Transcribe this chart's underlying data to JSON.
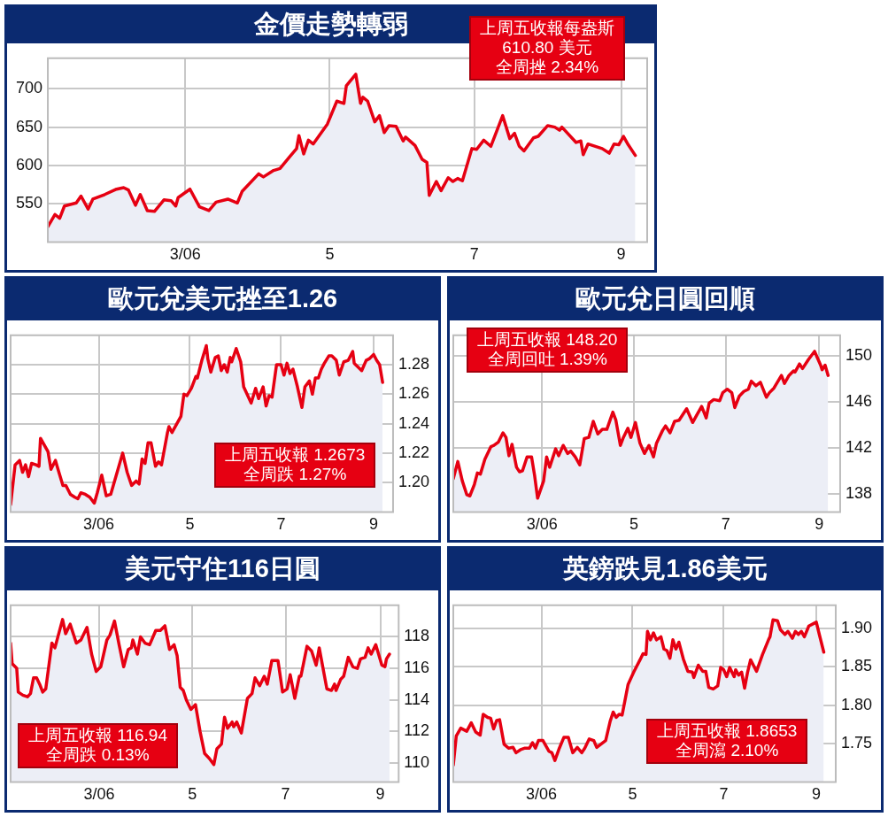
{
  "chart_data": [
    {
      "type": "area",
      "title": "金價走勢轉弱",
      "color": "#e60012",
      "grid": true,
      "xlim": [
        "2006-01-02",
        "2006-09-12"
      ],
      "xticks": [
        {
          "value": "2006-03-01",
          "label": "3/06"
        },
        {
          "value": "2006-05-01",
          "label": "5"
        },
        {
          "value": "2006-07-01",
          "label": "7"
        },
        {
          "value": "2006-09-01",
          "label": "9"
        }
      ],
      "ylim": [
        500,
        740
      ],
      "yticks": [
        550,
        600,
        650,
        700
      ],
      "x": [
        "2006-01-02",
        "2006-01-05",
        "2006-01-07",
        "2006-01-09",
        "2006-01-14",
        "2006-01-16",
        "2006-01-19",
        "2006-01-21",
        "2006-01-26",
        "2006-01-31",
        "2006-02-03",
        "2006-02-05",
        "2006-02-08",
        "2006-02-10",
        "2006-02-13",
        "2006-02-16",
        "2006-02-20",
        "2006-02-23",
        "2006-02-25",
        "2006-02-26",
        "2006-03-03",
        "2006-03-07",
        "2006-03-11",
        "2006-03-14",
        "2006-03-19",
        "2006-03-23",
        "2006-03-25",
        "2006-04-01",
        "2006-04-03",
        "2006-04-07",
        "2006-04-10",
        "2006-04-14",
        "2006-04-17",
        "2006-04-18",
        "2006-04-20",
        "2006-04-22",
        "2006-04-24",
        "2006-04-30",
        "2006-05-04",
        "2006-05-07",
        "2006-05-08",
        "2006-05-12",
        "2006-05-14",
        "2006-05-15",
        "2006-05-17",
        "2006-05-20",
        "2006-05-22",
        "2006-05-24",
        "2006-05-26",
        "2006-05-29",
        "2006-06-01",
        "2006-06-02",
        "2006-06-06",
        "2006-06-09",
        "2006-06-11",
        "2006-06-12",
        "2006-06-15",
        "2006-06-17",
        "2006-06-20",
        "2006-06-22",
        "2006-06-24",
        "2006-06-26",
        "2006-06-30",
        "2006-07-02",
        "2006-07-05",
        "2006-07-08",
        "2006-07-13",
        "2006-07-16",
        "2006-07-18",
        "2006-07-20",
        "2006-07-22",
        "2006-07-26",
        "2006-07-28",
        "2006-08-01",
        "2006-08-04",
        "2006-08-06",
        "2006-08-07",
        "2006-08-13",
        "2006-08-15",
        "2006-08-16",
        "2006-08-18",
        "2006-08-24",
        "2006-08-27",
        "2006-08-29",
        "2006-08-31",
        "2006-09-02",
        "2006-09-04",
        "2006-09-07"
      ],
      "values": [
        520,
        536,
        531,
        547,
        551,
        560,
        543,
        556,
        562,
        569,
        571,
        568,
        548,
        562,
        541,
        540,
        555,
        554,
        547,
        558,
        569,
        546,
        541,
        552,
        556,
        551,
        566,
        589,
        585,
        593,
        596,
        611,
        622,
        639,
        615,
        633,
        628,
        654,
        684,
        681,
        704,
        719,
        681,
        689,
        684,
        657,
        665,
        643,
        652,
        651,
        632,
        637,
        626,
        608,
        604,
        561,
        579,
        567,
        584,
        579,
        583,
        580,
        622,
        621,
        633,
        625,
        665,
        635,
        642,
        625,
        619,
        636,
        638,
        652,
        650,
        646,
        650,
        630,
        632,
        614,
        628,
        622,
        616,
        628,
        627,
        638,
        627,
        613
      ],
      "annotations": [
        "上周五收報每盎斯",
        "610.80 美元",
        "全周挫 2.34%"
      ]
    },
    {
      "type": "area",
      "title": "歐元兌美元挫至1.26",
      "color": "#e60012",
      "grid": true,
      "xlim": [
        "2006-01-01",
        "2006-09-14"
      ],
      "xticks": [
        {
          "value": "2006-03-01",
          "label": "3/06"
        },
        {
          "value": "2006-05-01",
          "label": "5"
        },
        {
          "value": "2006-07-01",
          "label": "7"
        },
        {
          "value": "2006-09-01",
          "label": "9"
        }
      ],
      "ylim": [
        1.18,
        1.3
      ],
      "yticks": [
        {
          "value": 1.2,
          "label": "1.20"
        },
        1.22,
        1.24,
        1.26,
        1.28
      ],
      "x": [
        "2006-01-01",
        "2006-01-04",
        "2006-01-07",
        "2006-01-09",
        "2006-01-11",
        "2006-01-13",
        "2006-01-15",
        "2006-01-18",
        "2006-01-20",
        "2006-01-21",
        "2006-01-26",
        "2006-01-28",
        "2006-01-31",
        "2006-02-02",
        "2006-02-05",
        "2006-02-07",
        "2006-02-10",
        "2006-02-13",
        "2006-02-15",
        "2006-02-17",
        "2006-02-20",
        "2006-02-23",
        "2006-02-26",
        "2006-02-28",
        "2006-03-03",
        "2006-03-06",
        "2006-03-09",
        "2006-03-13",
        "2006-03-17",
        "2006-03-20",
        "2006-03-23",
        "2006-03-26",
        "2006-03-28",
        "2006-03-30",
        "2006-04-01",
        "2006-04-03",
        "2006-04-05",
        "2006-04-08",
        "2006-04-10",
        "2006-04-12",
        "2006-04-16",
        "2006-04-17",
        "2006-04-19",
        "2006-04-25",
        "2006-04-27",
        "2006-04-29",
        "2006-05-02",
        "2006-05-05",
        "2006-05-06",
        "2006-05-09",
        "2006-05-12",
        "2006-05-13",
        "2006-05-15",
        "2006-05-18",
        "2006-05-20",
        "2006-05-22",
        "2006-05-24",
        "2006-05-26",
        "2006-05-28",
        "2006-05-29",
        "2006-06-01",
        "2006-06-04",
        "2006-06-06",
        "2006-06-11",
        "2006-06-14",
        "2006-06-16",
        "2006-06-19",
        "2006-06-21",
        "2006-06-23",
        "2006-06-25",
        "2006-06-28",
        "2006-07-01",
        "2006-07-03",
        "2006-07-05",
        "2006-07-07",
        "2006-07-09",
        "2006-07-12",
        "2006-07-15",
        "2006-07-17",
        "2006-07-20",
        "2006-07-22",
        "2006-07-24",
        "2006-07-26",
        "2006-07-28",
        "2006-07-30",
        "2006-08-02",
        "2006-08-04",
        "2006-08-07",
        "2006-08-09",
        "2006-08-12",
        "2006-08-15",
        "2006-08-18",
        "2006-08-19",
        "2006-08-21",
        "2006-08-24",
        "2006-08-27",
        "2006-08-29",
        "2006-09-01",
        "2006-09-03",
        "2006-09-05",
        "2006-09-07"
      ],
      "values": [
        1.185,
        1.212,
        1.215,
        1.207,
        1.212,
        1.204,
        1.213,
        1.212,
        1.211,
        1.23,
        1.221,
        1.209,
        1.215,
        1.208,
        1.198,
        1.198,
        1.192,
        1.19,
        1.189,
        1.193,
        1.192,
        1.19,
        1.186,
        1.193,
        1.205,
        1.191,
        1.192,
        1.206,
        1.22,
        1.207,
        1.198,
        1.201,
        1.199,
        1.216,
        1.213,
        1.227,
        1.227,
        1.211,
        1.214,
        1.212,
        1.234,
        1.238,
        1.234,
        1.245,
        1.26,
        1.259,
        1.264,
        1.272,
        1.271,
        1.283,
        1.293,
        1.284,
        1.275,
        1.285,
        1.286,
        1.276,
        1.28,
        1.275,
        1.285,
        1.282,
        1.291,
        1.282,
        1.265,
        1.254,
        1.264,
        1.257,
        1.265,
        1.252,
        1.259,
        1.258,
        1.28,
        1.28,
        1.273,
        1.281,
        1.274,
        1.277,
        1.265,
        1.251,
        1.265,
        1.269,
        1.26,
        1.271,
        1.271,
        1.277,
        1.281,
        1.286,
        1.286,
        1.283,
        1.273,
        1.282,
        1.283,
        1.289,
        1.281,
        1.279,
        1.276,
        1.283,
        1.284,
        1.287,
        1.283,
        1.28,
        1.268
      ],
      "annotations": [
        "上周五收報 1.2673",
        "全周跌 1.27%"
      ]
    },
    {
      "type": "area",
      "title": "歐元兌日圓回順",
      "color": "#e60012",
      "grid": true,
      "xlim": [
        "2006-01-01",
        "2006-09-15"
      ],
      "xticks": [
        {
          "value": "2006-03-01",
          "label": "3/06"
        },
        {
          "value": "2006-05-01",
          "label": "5"
        },
        {
          "value": "2006-07-01",
          "label": "7"
        },
        {
          "value": "2006-09-01",
          "label": "9"
        }
      ],
      "ylim": [
        136.4,
        151.8
      ],
      "yticks": [
        138,
        142,
        146,
        150
      ],
      "x": [
        "2006-01-01",
        "2006-01-04",
        "2006-01-07",
        "2006-01-10",
        "2006-01-12",
        "2006-01-15",
        "2006-01-17",
        "2006-01-19",
        "2006-01-22",
        "2006-01-26",
        "2006-01-28",
        "2006-01-31",
        "2006-02-03",
        "2006-02-05",
        "2006-02-07",
        "2006-02-09",
        "2006-02-12",
        "2006-02-14",
        "2006-02-16",
        "2006-02-19",
        "2006-02-22",
        "2006-02-24",
        "2006-02-26",
        "2006-03-02",
        "2006-03-04",
        "2006-03-06",
        "2006-03-10",
        "2006-03-12",
        "2006-03-15",
        "2006-03-18",
        "2006-03-20",
        "2006-03-23",
        "2006-03-26",
        "2006-03-29",
        "2006-04-01",
        "2006-04-04",
        "2006-04-07",
        "2006-04-10",
        "2006-04-13",
        "2006-04-17",
        "2006-04-19",
        "2006-04-22",
        "2006-04-24",
        "2006-04-27",
        "2006-04-29",
        "2006-05-02",
        "2006-05-05",
        "2006-05-08",
        "2006-05-11",
        "2006-05-14",
        "2006-05-16",
        "2006-05-20",
        "2006-05-22",
        "2006-05-25",
        "2006-05-28",
        "2006-05-31",
        "2006-06-05",
        "2006-06-09",
        "2006-06-12",
        "2006-06-15",
        "2006-06-18",
        "2006-06-20",
        "2006-06-23",
        "2006-06-27",
        "2006-06-29",
        "2006-07-02",
        "2006-07-05",
        "2006-07-07",
        "2006-07-10",
        "2006-07-13",
        "2006-07-16",
        "2006-07-18",
        "2006-07-21",
        "2006-07-24",
        "2006-07-28",
        "2006-07-30",
        "2006-08-02",
        "2006-08-07",
        "2006-08-09",
        "2006-08-12",
        "2006-08-15",
        "2006-08-16",
        "2006-08-19",
        "2006-08-21",
        "2006-08-25",
        "2006-08-29",
        "2006-09-02",
        "2006-09-03",
        "2006-09-05",
        "2006-09-07"
      ],
      "values": [
        139.3,
        140.8,
        139.1,
        137.9,
        137.8,
        138.8,
        139.8,
        139.7,
        141.0,
        142.1,
        142.2,
        142.5,
        143.3,
        142.9,
        141.3,
        142.3,
        140.3,
        139.9,
        140.0,
        141.2,
        141.2,
        139.6,
        137.6,
        139.1,
        141.2,
        140.3,
        141.9,
        141.3,
        142.2,
        141.5,
        141.7,
        141.2,
        140.5,
        142.8,
        142.9,
        144.3,
        143.2,
        143.6,
        143.6,
        145.1,
        144.4,
        142.2,
        142.9,
        143.7,
        142.9,
        144.2,
        142.4,
        141.5,
        142.2,
        141.2,
        142.4,
        143.5,
        143.9,
        143.3,
        144.3,
        144.4,
        145.4,
        144.2,
        144.9,
        145.6,
        144.6,
        145.9,
        146.2,
        146.1,
        146.8,
        147.1,
        146.8,
        145.5,
        146.5,
        146.9,
        147.1,
        147.8,
        147.4,
        147.7,
        146.4,
        146.8,
        147.2,
        148.3,
        147.6,
        148.3,
        148.7,
        148.6,
        149.3,
        148.9,
        149.7,
        150.4,
        149.2,
        148.8,
        149.2,
        148.3
      ],
      "annotations": [
        "上周五收報 148.20",
        "全周回吐 1.39%"
      ]
    },
    {
      "type": "area",
      "title": "美元守住116日圓",
      "color": "#e60012",
      "grid": true,
      "xlim": [
        "2006-01-02",
        "2006-09-13"
      ],
      "xticks": [
        {
          "value": "2006-03-01",
          "label": "3/06"
        },
        {
          "value": "2006-05-01",
          "label": "5"
        },
        {
          "value": "2006-07-01",
          "label": "7"
        },
        {
          "value": "2006-09-01",
          "label": "9"
        }
      ],
      "ylim": [
        108.8,
        120
      ],
      "yticks": [
        110,
        112,
        114,
        116,
        118
      ],
      "x": [
        "2006-01-02",
        "2006-01-03",
        "2006-01-06",
        "2006-01-07",
        "2006-01-10",
        "2006-01-13",
        "2006-01-15",
        "2006-01-17",
        "2006-01-19",
        "2006-01-21",
        "2006-01-23",
        "2006-01-25",
        "2006-01-29",
        "2006-01-31",
        "2006-02-05",
        "2006-02-07",
        "2006-02-10",
        "2006-02-14",
        "2006-02-17",
        "2006-02-21",
        "2006-02-24",
        "2006-02-27",
        "2006-03-02",
        "2006-03-06",
        "2006-03-08",
        "2006-03-11",
        "2006-03-14",
        "2006-03-17",
        "2006-03-20",
        "2006-03-22",
        "2006-03-23",
        "2006-03-26",
        "2006-03-28",
        "2006-03-31",
        "2006-04-03",
        "2006-04-07",
        "2006-04-10",
        "2006-04-13",
        "2006-04-16",
        "2006-04-19",
        "2006-04-21",
        "2006-04-23",
        "2006-04-25",
        "2006-04-27",
        "2006-04-30",
        "2006-05-02",
        "2006-05-03",
        "2006-05-06",
        "2006-05-09",
        "2006-05-12",
        "2006-05-15",
        "2006-05-17",
        "2006-05-20",
        "2006-05-22",
        "2006-05-24",
        "2006-05-27",
        "2006-05-28",
        "2006-05-30",
        "2006-06-02",
        "2006-06-06",
        "2006-06-09",
        "2006-06-11",
        "2006-06-14",
        "2006-06-17",
        "2006-06-19",
        "2006-06-22",
        "2006-06-26",
        "2006-06-29",
        "2006-07-02",
        "2006-07-04",
        "2006-07-07",
        "2006-07-10",
        "2006-07-11",
        "2006-07-15",
        "2006-07-18",
        "2006-07-21",
        "2006-07-23",
        "2006-07-28",
        "2006-07-31",
        "2006-08-02",
        "2006-08-03",
        "2006-08-06",
        "2006-08-08",
        "2006-08-11",
        "2006-08-14",
        "2006-08-17",
        "2006-08-19",
        "2006-08-22",
        "2006-08-24",
        "2006-08-26",
        "2006-08-29",
        "2006-09-02",
        "2006-09-04",
        "2006-09-05",
        "2006-09-07"
      ],
      "values": [
        117.6,
        116.3,
        116.0,
        114.5,
        114.3,
        114.2,
        114.4,
        115.4,
        115.4,
        115.0,
        114.5,
        114.7,
        117.6,
        117.3,
        119.1,
        118.2,
        118.8,
        117.6,
        117.8,
        118.6,
        116.9,
        115.8,
        116.1,
        117.8,
        118.1,
        119.0,
        117.5,
        116.1,
        117.2,
        117.3,
        117.8,
        116.9,
        118.0,
        117.6,
        117.5,
        118.4,
        118.4,
        118.7,
        117.2,
        117.5,
        116.8,
        114.8,
        114.6,
        114.0,
        113.4,
        113.6,
        113.7,
        112.0,
        110.6,
        110.3,
        109.9,
        110.9,
        111.2,
        112.9,
        112.2,
        112.6,
        112.3,
        112.6,
        111.9,
        114.1,
        114.4,
        115.4,
        114.9,
        115.5,
        115.0,
        116.5,
        116.5,
        114.5,
        114.7,
        115.6,
        114.1,
        115.5,
        115.5,
        117.4,
        117.1,
        116.2,
        117.3,
        114.7,
        114.6,
        115.0,
        114.6,
        115.3,
        115.5,
        116.7,
        116.1,
        116.0,
        116.6,
        116.7,
        117.3,
        116.9,
        117.5,
        116.2,
        116.1,
        116.6,
        116.9
      ],
      "annotations": [
        "上周五收報 116.94",
        "全周跌 0.13%"
      ]
    },
    {
      "type": "area",
      "title": "英鎊跌見1.86美元",
      "color": "#e60012",
      "grid": true,
      "xlim": [
        "2006-01-01",
        "2006-09-14"
      ],
      "xticks": [
        {
          "value": "2006-03-01",
          "label": "3/06"
        },
        {
          "value": "2006-05-01",
          "label": "5"
        },
        {
          "value": "2006-07-01",
          "label": "7"
        },
        {
          "value": "2006-09-01",
          "label": "9"
        }
      ],
      "ylim": [
        1.7,
        1.93
      ],
      "yticks": [
        1.75,
        {
          "value": 1.8,
          "label": "1.80"
        },
        1.85,
        {
          "value": 1.9,
          "label": "1.90"
        }
      ],
      "x": [
        "2006-01-01",
        "2006-01-03",
        "2006-01-06",
        "2006-01-10",
        "2006-01-13",
        "2006-01-16",
        "2006-01-19",
        "2006-01-21",
        "2006-01-24",
        "2006-01-26",
        "2006-01-28",
        "2006-01-30",
        "2006-02-01",
        "2006-02-04",
        "2006-02-07",
        "2006-02-10",
        "2006-02-12",
        "2006-02-15",
        "2006-02-18",
        "2006-02-21",
        "2006-02-23",
        "2006-02-25",
        "2006-02-27",
        "2006-03-02",
        "2006-03-06",
        "2006-03-08",
        "2006-03-10",
        "2006-03-13",
        "2006-03-16",
        "2006-03-19",
        "2006-03-22",
        "2006-03-25",
        "2006-03-28",
        "2006-03-30",
        "2006-04-02",
        "2006-04-05",
        "2006-04-07",
        "2006-04-13",
        "2006-04-16",
        "2006-04-18",
        "2006-04-20",
        "2006-04-22",
        "2006-04-24",
        "2006-04-26",
        "2006-04-28",
        "2006-05-02",
        "2006-05-06",
        "2006-05-08",
        "2006-05-10",
        "2006-05-11",
        "2006-05-13",
        "2006-05-15",
        "2006-05-17",
        "2006-05-20",
        "2006-05-22",
        "2006-05-24",
        "2006-05-26",
        "2006-05-28",
        "2006-05-30",
        "2006-06-01",
        "2006-06-04",
        "2006-06-07",
        "2006-06-10",
        "2006-06-11",
        "2006-06-14",
        "2006-06-17",
        "2006-06-19",
        "2006-06-21",
        "2006-06-24",
        "2006-06-27",
        "2006-06-29",
        "2006-07-01",
        "2006-07-03",
        "2006-07-05",
        "2006-07-08",
        "2006-07-09",
        "2006-07-11",
        "2006-07-13",
        "2006-07-15",
        "2006-07-17",
        "2006-07-19",
        "2006-07-23",
        "2006-07-27",
        "2006-07-31",
        "2006-08-01",
        "2006-08-03",
        "2006-08-06",
        "2006-08-08",
        "2006-08-11",
        "2006-08-13",
        "2006-08-16",
        "2006-08-18",
        "2006-08-20",
        "2006-08-22",
        "2006-08-24",
        "2006-08-27",
        "2006-08-30",
        "2006-09-01",
        "2006-09-03",
        "2006-09-06"
      ],
      "values": [
        1.722,
        1.76,
        1.77,
        1.766,
        1.777,
        1.765,
        1.761,
        1.788,
        1.784,
        1.783,
        1.769,
        1.78,
        1.781,
        1.749,
        1.744,
        1.745,
        1.738,
        1.742,
        1.744,
        1.744,
        1.751,
        1.744,
        1.754,
        1.754,
        1.74,
        1.738,
        1.728,
        1.744,
        1.758,
        1.758,
        1.738,
        1.745,
        1.738,
        1.744,
        1.756,
        1.754,
        1.745,
        1.754,
        1.779,
        1.791,
        1.784,
        1.788,
        1.787,
        1.807,
        1.827,
        1.844,
        1.859,
        1.867,
        1.866,
        1.896,
        1.885,
        1.894,
        1.885,
        1.889,
        1.873,
        1.871,
        1.861,
        1.885,
        1.873,
        1.882,
        1.86,
        1.844,
        1.843,
        1.836,
        1.852,
        1.844,
        1.844,
        1.823,
        1.821,
        1.825,
        1.849,
        1.846,
        1.837,
        1.849,
        1.837,
        1.846,
        1.839,
        1.843,
        1.822,
        1.843,
        1.859,
        1.844,
        1.866,
        1.885,
        1.889,
        1.911,
        1.91,
        1.898,
        1.892,
        1.896,
        1.887,
        1.896,
        1.892,
        1.896,
        1.889,
        1.903,
        1.906,
        1.908,
        1.892,
        1.869
      ],
      "annotations": [
        "上周五收報 1.8653",
        "全周瀉 2.10%"
      ]
    }
  ]
}
